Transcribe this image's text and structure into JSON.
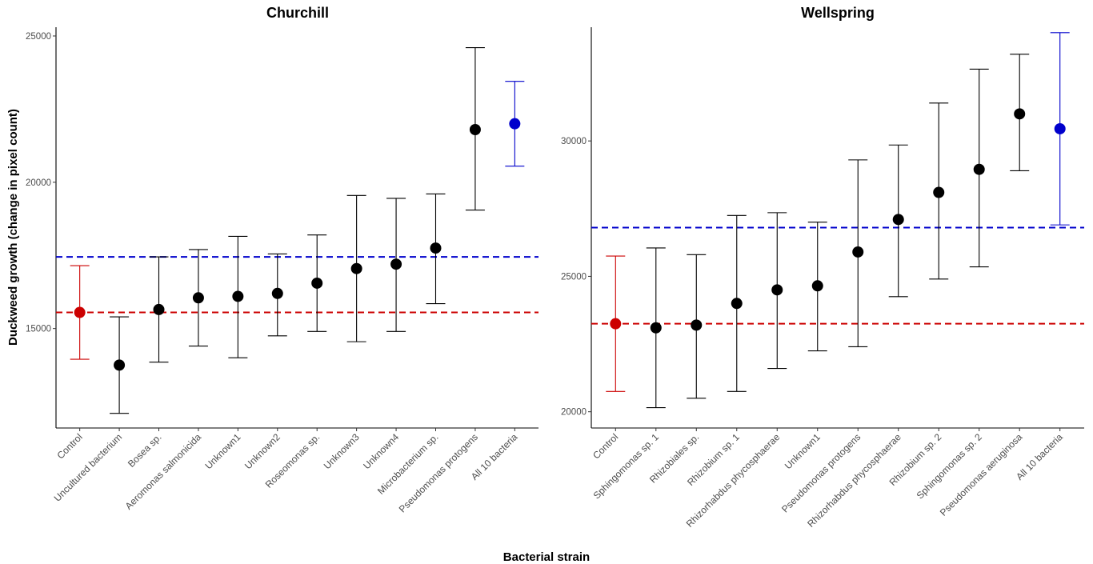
{
  "figure": {
    "xlabel": "Bacterial strain",
    "ylabel": "Duckweed growth (change in pixel count)"
  },
  "colors": {
    "control": "#cc0000",
    "all_bacteria": "#0000cc",
    "strain": "#000000",
    "control_line": "#cc0000",
    "all_line": "#0000cc"
  },
  "chart_data": [
    {
      "type": "scatter",
      "title": "Churchill",
      "ylim": [
        11600,
        25300
      ],
      "yticks": [
        15000,
        20000,
        25000
      ],
      "grid": false,
      "reference_lines": {
        "control": 15550,
        "all_bacteria": 17450
      },
      "categories": [
        "Control",
        "Uncultured bacterium",
        "Bosea sp.",
        "Aeromonas salmonicida",
        "Unknown1",
        "Unknown2",
        "Roseomonas sp.",
        "Unknown3",
        "Unknown4",
        "Microbacterium sp.",
        "Pseudomonas protogens",
        "All 10 bacteria"
      ],
      "means": [
        15550,
        13750,
        15650,
        16050,
        16100,
        16200,
        16550,
        17050,
        17200,
        17750,
        21800,
        22000
      ],
      "lower": [
        13950,
        12100,
        13850,
        14400,
        14000,
        14750,
        14900,
        14550,
        14900,
        15850,
        19050,
        20550
      ],
      "upper": [
        17150,
        15400,
        17450,
        17700,
        18150,
        17550,
        18200,
        19550,
        19450,
        19600,
        24600,
        23450
      ],
      "groups": [
        "control",
        "strain",
        "strain",
        "strain",
        "strain",
        "strain",
        "strain",
        "strain",
        "strain",
        "strain",
        "strain",
        "all"
      ]
    },
    {
      "type": "scatter",
      "title": "Wellspring",
      "ylim": [
        19400,
        34200
      ],
      "yticks": [
        20000,
        25000,
        30000
      ],
      "grid": false,
      "reference_lines": {
        "control": 23250,
        "all_bacteria": 26800
      },
      "categories": [
        "Control",
        "Sphingomonas sp. 1",
        "Rhizobiales sp.",
        "Rhizobium sp. 1",
        "Rhizorhabdus phycosphaerae",
        "Unknown1",
        "Pseudomonas protogens",
        "Rhizorhabdus phycosphaerae",
        "Rhizobium sp. 2",
        "Sphingomonas sp. 2",
        "Pseudomonas aeruginosa",
        "All 10 bacteria"
      ],
      "means": [
        23250,
        23100,
        23200,
        24000,
        24500,
        24650,
        25900,
        27100,
        28100,
        28950,
        31000,
        30450
      ],
      "lower": [
        20750,
        20150,
        20500,
        20750,
        21600,
        22250,
        22400,
        24250,
        24900,
        25350,
        28900,
        26900
      ],
      "upper": [
        25750,
        26050,
        25800,
        27250,
        27350,
        27000,
        29300,
        29850,
        31400,
        32650,
        33200,
        34000
      ],
      "groups": [
        "control",
        "strain",
        "strain",
        "strain",
        "strain",
        "strain",
        "strain",
        "strain",
        "strain",
        "strain",
        "strain",
        "all"
      ]
    }
  ]
}
